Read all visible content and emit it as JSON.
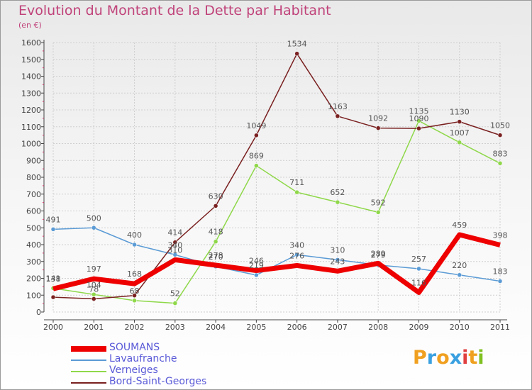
{
  "title": "Evolution du Montant de la Dette par Habitant",
  "subtitle": "(en €)",
  "logo": {
    "letters": [
      "P",
      "r",
      "o",
      "x",
      "i",
      "t",
      "i"
    ],
    "colors": [
      "#f0a020",
      "#3aa0e0",
      "#f0a020",
      "#3aa0e0",
      "#e04040",
      "#f0a020",
      "#80c020"
    ]
  },
  "chart_data": {
    "type": "line",
    "x": [
      "2000",
      "2001",
      "2002",
      "2003",
      "2004",
      "2005",
      "2006",
      "2007",
      "2008",
      "2009",
      "2010",
      "2011"
    ],
    "ylim": [
      0,
      1600
    ],
    "yticks": [
      "0",
      "100",
      "200",
      "300",
      "400",
      "500",
      "600",
      "700",
      "800",
      "900",
      "1000",
      "1100",
      "1200",
      "1300",
      "1400",
      "1500",
      "1600"
    ],
    "grid": true,
    "legend_position": "bottom-left",
    "series": [
      {
        "name": "SOUMANS",
        "color": "#ee0000",
        "width": 7,
        "values": [
          138,
          197,
          168,
          310,
          278,
          246,
          276,
          243,
          289,
          116,
          459,
          398
        ],
        "labels": [
          "138",
          "197",
          "168",
          "310",
          "278",
          "246",
          "276",
          "243",
          "289",
          "116",
          "459",
          "398"
        ]
      },
      {
        "name": "Lavaufranche",
        "color": "#5b9bd5",
        "width": 1.5,
        "values": [
          491,
          500,
          400,
          340,
          270,
          219,
          340,
          310,
          279,
          257,
          220,
          183
        ],
        "labels": [
          "491",
          "500",
          "400",
          "340",
          "270",
          "219",
          "340",
          "310",
          "279",
          "257",
          "220",
          "183"
        ]
      },
      {
        "name": "Verneiges",
        "color": "#8fd84a",
        "width": 1.5,
        "values": [
          141,
          104,
          68,
          52,
          418,
          869,
          711,
          652,
          592,
          1135,
          1007,
          883
        ],
        "labels": [
          "141",
          "104",
          "68",
          "52",
          "418",
          "869",
          "711",
          "652",
          "592",
          "1135",
          "1007",
          "883"
        ]
      },
      {
        "name": "Bord-Saint-Georges",
        "color": "#7a2020",
        "width": 1.5,
        "values": [
          88,
          78,
          98,
          414,
          630,
          1049,
          1534,
          1163,
          1092,
          1090,
          1130,
          1050
        ],
        "labels": [
          "",
          "78",
          "",
          "414",
          "630",
          "1049",
          "1534",
          "1163",
          "1092",
          "1090",
          "1130",
          "1050"
        ]
      }
    ]
  }
}
